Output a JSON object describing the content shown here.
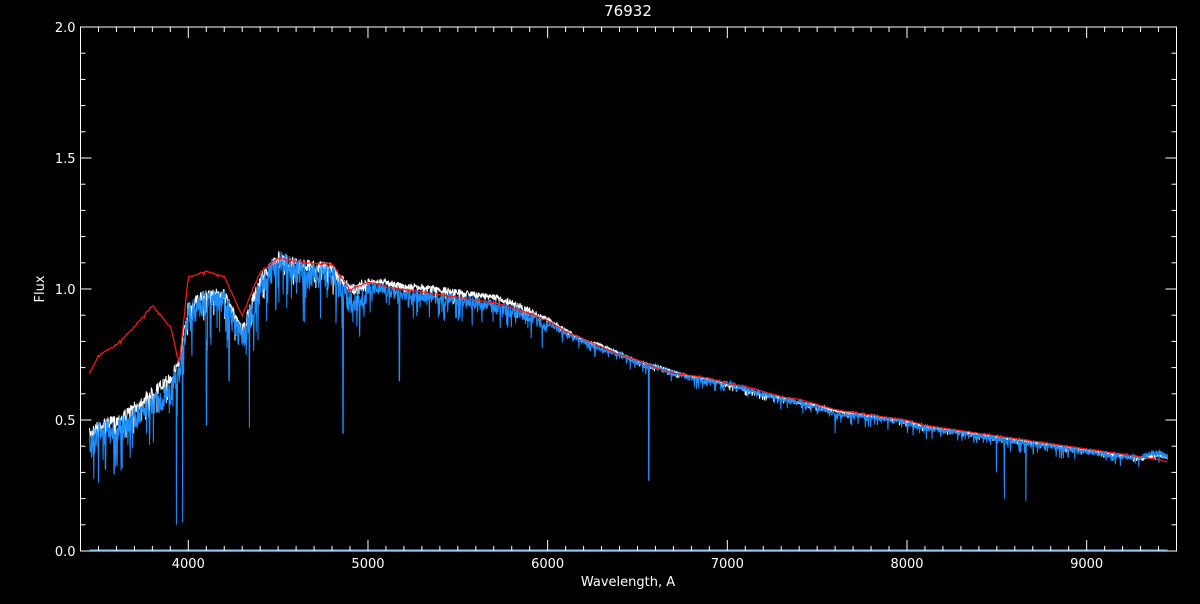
{
  "chart_data": {
    "type": "line",
    "title": "76932",
    "xlabel": "Wavelength, A",
    "ylabel": "Flux",
    "xlim": [
      3400,
      9500
    ],
    "ylim": [
      0.0,
      2.0
    ],
    "xticks": [
      4000,
      5000,
      6000,
      7000,
      8000,
      9000
    ],
    "xtick_labels": [
      "4000",
      "5000",
      "6000",
      "7000",
      "8000",
      "9000"
    ],
    "yticks": [
      0.0,
      0.5,
      1.0,
      1.5,
      2.0
    ],
    "ytick_labels": [
      "0.0",
      "0.5",
      "1.0",
      "1.5",
      "2.0"
    ],
    "x_minor_step": 100,
    "y_minor_step": 0.1,
    "grid": false,
    "background": "#000000",
    "axis_color": "#ffffff",
    "wavelength": [
      3450,
      3500,
      3600,
      3700,
      3800,
      3900,
      3950,
      4000,
      4100,
      4200,
      4300,
      4400,
      4500,
      4600,
      4700,
      4800,
      4900,
      5000,
      5100,
      5200,
      5300,
      5400,
      5500,
      5600,
      5700,
      5800,
      5900,
      6000,
      6100,
      6200,
      6300,
      6400,
      6500,
      6600,
      6700,
      6800,
      6900,
      7000,
      7100,
      7200,
      7300,
      7400,
      7500,
      7600,
      7700,
      7800,
      7900,
      8000,
      8100,
      8200,
      8300,
      8400,
      8500,
      8600,
      8700,
      8800,
      8900,
      9000,
      9100,
      9200,
      9300,
      9400,
      9450
    ],
    "series": [
      {
        "color": "#ffffff",
        "values": [
          0.47,
          0.5,
          0.52,
          0.57,
          0.63,
          0.68,
          0.75,
          0.96,
          1.0,
          1.0,
          0.86,
          1.06,
          1.14,
          1.12,
          1.11,
          1.1,
          1.02,
          1.04,
          1.04,
          1.02,
          1.02,
          1.01,
          1.0,
          0.99,
          0.98,
          0.96,
          0.93,
          0.89,
          0.85,
          0.81,
          0.79,
          0.76,
          0.73,
          0.71,
          0.69,
          0.67,
          0.66,
          0.64,
          0.62,
          0.6,
          0.59,
          0.57,
          0.56,
          0.54,
          0.53,
          0.52,
          0.51,
          0.5,
          0.48,
          0.47,
          0.46,
          0.45,
          0.44,
          0.43,
          0.42,
          0.41,
          0.4,
          0.39,
          0.38,
          0.37,
          0.36,
          0.37,
          0.36
        ]
      },
      {
        "color": "#1e8fff",
        "values": [
          0.45,
          0.5,
          0.5,
          0.55,
          0.6,
          0.65,
          0.73,
          0.95,
          1.0,
          1.0,
          0.85,
          1.05,
          1.15,
          1.12,
          1.1,
          1.1,
          1.0,
          1.03,
          1.02,
          1.0,
          1.0,
          0.99,
          0.98,
          0.97,
          0.96,
          0.94,
          0.92,
          0.88,
          0.84,
          0.81,
          0.78,
          0.76,
          0.73,
          0.71,
          0.69,
          0.67,
          0.66,
          0.65,
          0.63,
          0.61,
          0.59,
          0.58,
          0.56,
          0.53,
          0.53,
          0.52,
          0.51,
          0.5,
          0.48,
          0.47,
          0.46,
          0.45,
          0.44,
          0.43,
          0.42,
          0.41,
          0.4,
          0.39,
          0.38,
          0.37,
          0.37,
          0.39,
          0.37
        ],
        "absorption_lines": [
          [
            3934,
            0.1
          ],
          [
            3968,
            0.11
          ],
          [
            4101,
            0.48
          ],
          [
            4227,
            0.65
          ],
          [
            4340,
            0.47
          ],
          [
            4861,
            0.45
          ],
          [
            5175,
            0.65
          ],
          [
            5890,
            0.85
          ],
          [
            6563,
            0.27
          ],
          [
            7600,
            0.45
          ],
          [
            8498,
            0.3
          ],
          [
            8542,
            0.2
          ],
          [
            8662,
            0.19
          ]
        ]
      },
      {
        "color": "#ff1a1a",
        "values": [
          0.68,
          0.75,
          0.79,
          0.86,
          0.94,
          0.86,
          0.72,
          1.05,
          1.07,
          1.05,
          0.9,
          1.07,
          1.12,
          1.11,
          1.1,
          1.1,
          1.0,
          1.03,
          1.01,
          1.0,
          0.99,
          0.98,
          0.97,
          0.96,
          0.95,
          0.93,
          0.91,
          0.88,
          0.84,
          0.81,
          0.78,
          0.75,
          0.73,
          0.7,
          0.68,
          0.67,
          0.66,
          0.64,
          0.63,
          0.61,
          0.59,
          0.58,
          0.56,
          0.54,
          0.53,
          0.52,
          0.51,
          0.5,
          0.48,
          0.47,
          0.46,
          0.45,
          0.44,
          0.43,
          0.42,
          0.41,
          0.4,
          0.39,
          0.38,
          0.37,
          0.36,
          0.35,
          0.34
        ]
      }
    ]
  }
}
